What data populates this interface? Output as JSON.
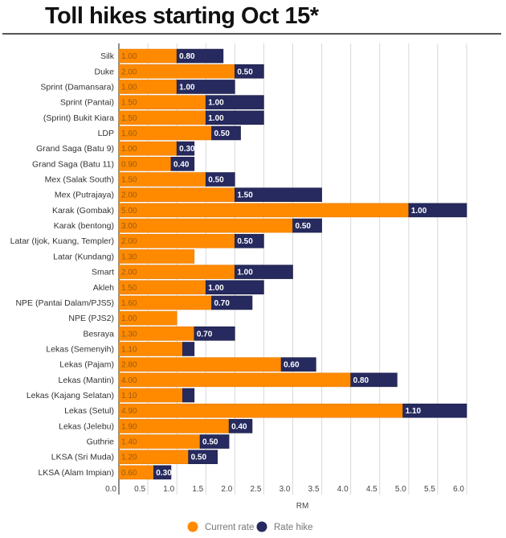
{
  "chart_data": {
    "type": "bar",
    "orientation": "horizontal",
    "stacked": true,
    "title": "Toll hikes starting Oct 15*",
    "xlabel": "RM",
    "ylabel": "",
    "xlim": [
      0,
      6.0
    ],
    "xticks": [
      "0.0",
      "0.5",
      "1.0",
      "1.5",
      "2.0",
      "2.5",
      "3.0",
      "3.5",
      "4.0",
      "4.5",
      "5.0",
      "5.5",
      "6.0"
    ],
    "grid": true,
    "legend_position": "bottom",
    "categories": [
      "Silk",
      "Duke",
      "Sprint (Damansara)",
      "Sprint (Pantai)",
      "(Sprint) Bukit Kiara",
      "LDP",
      "Grand Saga (Batu 9)",
      "Grand Saga (Batu 11)",
      "Mex (Salak South)",
      "Mex (Putrajaya)",
      "Karak (Gombak)",
      "Karak (bentong)",
      "Latar (Ijok, Kuang, Templer)",
      "Latar (Kundang)",
      "Smart",
      "Akleh",
      "NPE (Pantai Dalam/PJS5)",
      "NPE (PJS2)",
      "Besraya",
      "Lekas (Semenyih)",
      "Lekas (Pajam)",
      "Lekas (Mantin)",
      "Lekas (Kajang Selatan)",
      "Lekas (Setul)",
      "Lekas (Jelebu)",
      "Guthrie",
      "LKSA (Sri Muda)",
      "LKSA (Alam Impian)"
    ],
    "series": [
      {
        "name": "Current rate",
        "color": "#ff8a00",
        "values": [
          1.0,
          2.0,
          1.0,
          1.5,
          1.5,
          1.6,
          1.0,
          0.9,
          1.5,
          2.0,
          5.0,
          3.0,
          2.0,
          1.3,
          2.0,
          1.5,
          1.6,
          1.0,
          1.3,
          1.1,
          2.8,
          4.0,
          1.1,
          4.9,
          1.9,
          1.4,
          1.2,
          0.6
        ],
        "labels": [
          "1.00",
          "2.00",
          "1.00",
          "1.50",
          "1.50",
          "1.60",
          "1.00",
          "0.90",
          "1.50",
          "2.00",
          "5.00",
          "3.00",
          "2.00",
          "1.30",
          "2.00",
          "1.50",
          "1.60",
          "1.00",
          "1.30",
          "1.10",
          "2.80",
          "4.00",
          "1.10",
          "4.90",
          "1.90",
          "1.40",
          "1.20",
          "0.60"
        ]
      },
      {
        "name": "Rate hike",
        "color": "#262a5e",
        "values": [
          0.8,
          0.5,
          1.0,
          1.0,
          1.0,
          0.5,
          0.3,
          0.4,
          0.5,
          1.5,
          1.0,
          0.5,
          0.5,
          0,
          1.0,
          1.0,
          0.7,
          0,
          0.7,
          0.2,
          0.6,
          0.8,
          0.2,
          1.1,
          0.4,
          0.5,
          0.5,
          0.3
        ],
        "labels": [
          "0.80",
          "0.50",
          "1.00",
          "1.00",
          "1.00",
          "0.50",
          "0.30",
          "0.40",
          "0.50",
          "1.50",
          "1.00",
          "0.50",
          "0.50",
          "",
          "1.00",
          "1.00",
          "0.70",
          "",
          "0.70",
          "",
          "0.60",
          "0.80",
          "",
          "1.10",
          "0.40",
          "0.50",
          "0.50",
          "0.30"
        ]
      }
    ]
  }
}
